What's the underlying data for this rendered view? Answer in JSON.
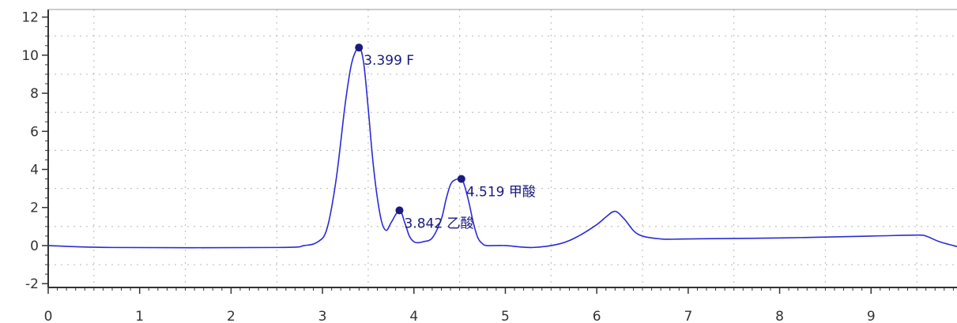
{
  "colors": {
    "line": "#2b2bd8",
    "marker": "#1a1a80",
    "label": "#1a1a80",
    "axis": "#333333",
    "grid": "#b8b8b8"
  },
  "chart_data": {
    "type": "line",
    "xlim": [
      0,
      9.94
    ],
    "ylim": [
      -2.2,
      12.4
    ],
    "grid": true,
    "x_ticks": [
      {
        "value": 0,
        "label": "0"
      },
      {
        "value": 1,
        "label": "1"
      },
      {
        "value": 2,
        "label": "2"
      },
      {
        "value": 3,
        "label": "3"
      },
      {
        "value": 4,
        "label": "4"
      },
      {
        "value": 5,
        "label": "5"
      },
      {
        "value": 6,
        "label": "6"
      },
      {
        "value": 7,
        "label": "7"
      },
      {
        "value": 8,
        "label": "8"
      },
      {
        "value": 9,
        "label": "9"
      }
    ],
    "y_ticks": [
      {
        "value": -2,
        "label": "-2"
      },
      {
        "value": 0,
        "label": "0"
      },
      {
        "value": 2,
        "label": "2"
      },
      {
        "value": 4,
        "label": "4"
      },
      {
        "value": 6,
        "label": "6"
      },
      {
        "value": 8,
        "label": "8"
      },
      {
        "value": 10,
        "label": "10"
      },
      {
        "value": 12,
        "label": "12"
      }
    ],
    "series": [
      {
        "x": [
          0,
          0.7,
          2.5,
          2.8,
          2.95,
          3.05,
          3.15,
          3.25,
          3.32,
          3.399,
          3.45,
          3.5,
          3.55,
          3.6,
          3.65,
          3.7,
          3.75,
          3.842,
          3.9,
          3.95,
          4.0,
          4.05,
          4.1,
          4.2,
          4.3,
          4.35,
          4.4,
          4.45,
          4.519,
          4.55,
          4.6,
          4.65,
          4.7,
          4.75,
          4.8,
          5.0,
          5.3,
          5.6,
          5.8,
          6.0,
          6.1,
          6.2,
          6.3,
          6.45,
          6.7,
          7.0,
          8.0,
          9.0,
          9.5,
          9.6,
          9.75,
          9.94
        ],
        "y": [
          0,
          -0.1,
          -0.1,
          0,
          0.2,
          0.9,
          3.5,
          7.5,
          9.6,
          10.4,
          9.6,
          7.2,
          4.5,
          2.5,
          1.2,
          0.8,
          1.2,
          1.85,
          1.2,
          0.5,
          0.2,
          0.15,
          0.2,
          0.4,
          1.4,
          2.4,
          3.2,
          3.45,
          3.5,
          3.2,
          2.3,
          1.2,
          0.4,
          0.1,
          0,
          0,
          -0.1,
          0.1,
          0.5,
          1.1,
          1.5,
          1.8,
          1.4,
          0.6,
          0.35,
          0.35,
          0.4,
          0.5,
          0.55,
          0.5,
          0.2,
          -0.05
        ]
      }
    ],
    "peaks": [
      {
        "x": 3.399,
        "y": 10.4,
        "label": "3.399 F"
      },
      {
        "x": 3.842,
        "y": 1.85,
        "label": "3.842 乙酸"
      },
      {
        "x": 4.519,
        "y": 3.5,
        "label": "4.519 甲酸"
      }
    ]
  }
}
